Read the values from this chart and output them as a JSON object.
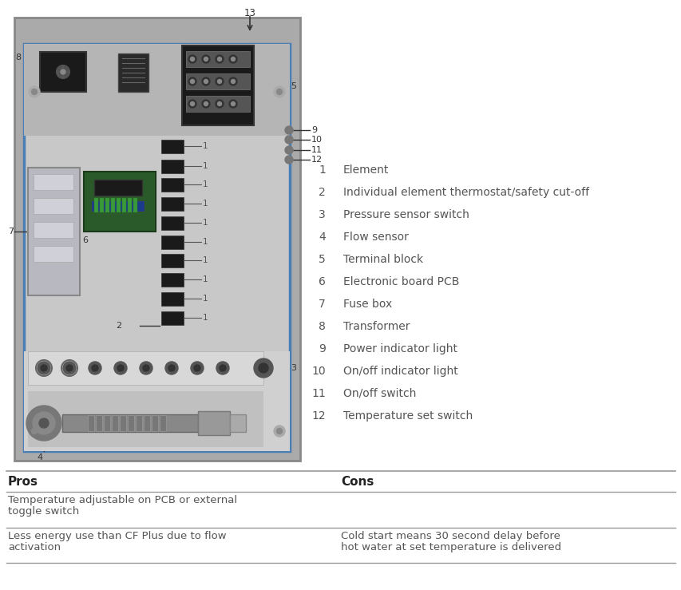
{
  "fig_bg": "#ffffff",
  "panel_outer_color": "#888888",
  "panel_inner_color": "#c8c8c8",
  "panel_blue": "#4a7fb5",
  "panel_top_color": "#b0b0b0",
  "panel_mid_color": "#c4c4c4",
  "panel_bot_color": "#d0d0d0",
  "dark": "#222222",
  "mid_dark": "#444444",
  "pcb_green": "#2a6b2a",
  "legend_items": [
    {
      "num": "1",
      "label": "Element"
    },
    {
      "num": "2",
      "label": "Individual element thermostat/safety cut-off"
    },
    {
      "num": "3",
      "label": "Pressure sensor switch"
    },
    {
      "num": "4",
      "label": "Flow sensor"
    },
    {
      "num": "5",
      "label": "Terminal block"
    },
    {
      "num": "6",
      "label": "Electronic board PCB"
    },
    {
      "num": "7",
      "label": "Fuse box"
    },
    {
      "num": "8",
      "label": "Transformer"
    },
    {
      "num": "9",
      "label": "Power indicator light"
    },
    {
      "num": "10",
      "label": "On/off indicator light"
    },
    {
      "num": "11",
      "label": "On/off switch"
    },
    {
      "num": "12",
      "label": "Temperature set switch"
    }
  ],
  "pros_header": "Pros",
  "cons_header": "Cons",
  "text_color": "#555555",
  "header_color": "#333333",
  "arrow_color": "#333333",
  "table_line_color": "#999999"
}
